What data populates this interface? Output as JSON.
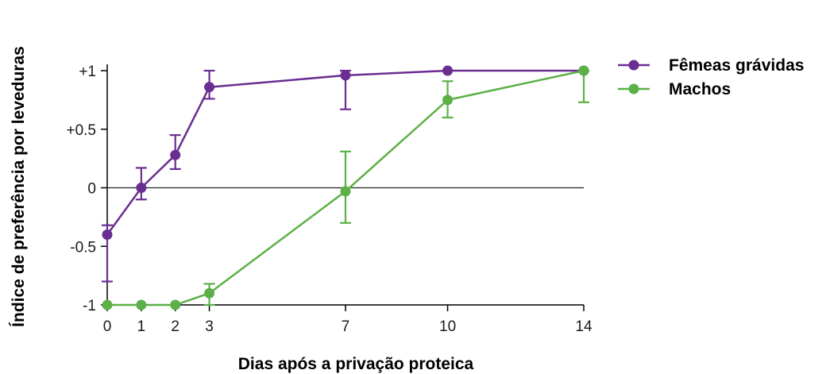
{
  "chart_data": {
    "type": "line",
    "xlabel": "Dias após a privação proteica",
    "ylabel": "Índice de preferência por leveduras",
    "x_ticks": [
      0,
      1,
      2,
      3,
      7,
      10,
      14
    ],
    "y_ticks": [
      {
        "value": 1,
        "label": "+1"
      },
      {
        "value": 0.5,
        "label": "+0.5"
      },
      {
        "value": 0,
        "label": "0"
      },
      {
        "value": -0.5,
        "label": "-0.5"
      },
      {
        "value": -1,
        "label": "-1"
      }
    ],
    "xlim": [
      0,
      14
    ],
    "ylim": [
      -1,
      1
    ],
    "reference_line_y": 0,
    "legend_position": "top-right",
    "series": [
      {
        "name": "Fêmeas grávidas",
        "color": "#6a2d91",
        "x": [
          0,
          1,
          2,
          3,
          7,
          10,
          14
        ],
        "y": [
          -0.4,
          0.0,
          0.28,
          0.86,
          0.96,
          1.0,
          1.0
        ],
        "err_low": [
          -0.8,
          -0.1,
          0.16,
          0.76,
          0.67,
          1.0,
          1.0
        ],
        "err_high": [
          -0.32,
          0.17,
          0.45,
          1.0,
          1.0,
          1.0,
          1.0
        ]
      },
      {
        "name": "Machos",
        "color": "#5cb047",
        "x": [
          0,
          1,
          2,
          3,
          7,
          10,
          14
        ],
        "y": [
          -1.0,
          -1.0,
          -1.0,
          -0.9,
          -0.03,
          0.75,
          1.0
        ],
        "err_low": [
          -1.0,
          -1.0,
          -1.0,
          -1.0,
          -0.3,
          0.6,
          0.73
        ],
        "err_high": [
          -1.0,
          -1.0,
          -1.0,
          -0.82,
          0.31,
          0.91,
          1.0
        ]
      }
    ]
  }
}
